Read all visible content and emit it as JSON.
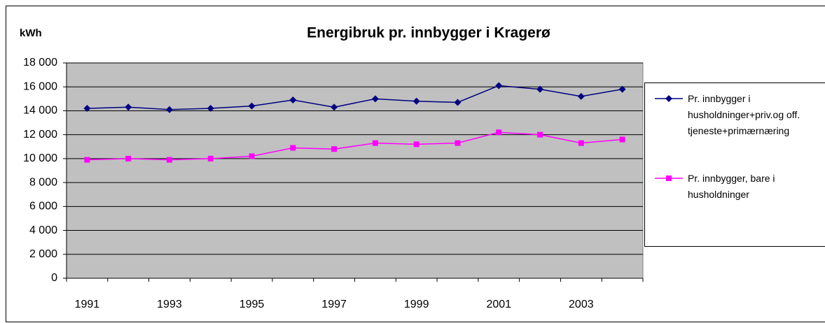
{
  "chart_data": {
    "type": "line",
    "title": "Energibruk pr. innbygger i Kragerø",
    "y_label": "kWh",
    "categories": [
      "1991",
      null,
      "1993",
      null,
      "1995",
      null,
      "1997",
      null,
      "1999",
      null,
      "2001",
      null,
      "2003",
      null
    ],
    "series": [
      {
        "name": "Pr. innbygger i husholdninger+priv.og off. tjeneste+primærnæring",
        "color": "#000080",
        "marker": "diamond",
        "values": [
          14200,
          14300,
          14100,
          14200,
          14400,
          14900,
          14300,
          15000,
          14800,
          14700,
          16100,
          15800,
          15200,
          15800
        ]
      },
      {
        "name": "Pr. innbygger, bare i husholdninger",
        "color": "#ff00ff",
        "marker": "square",
        "values": [
          9900,
          10000,
          9900,
          10000,
          10200,
          10900,
          10800,
          11300,
          11200,
          11300,
          12200,
          12000,
          11300,
          11600
        ]
      }
    ],
    "ylim": [
      0,
      18000
    ],
    "yticks": [
      0,
      {
        "value": 2000,
        "label": "2 000"
      },
      {
        "value": 4000,
        "label": "4 000"
      },
      {
        "value": 6000,
        "label": "6 000"
      },
      {
        "value": 8000,
        "label": "8 000"
      },
      {
        "value": 10000,
        "label": "10 000"
      },
      {
        "value": 12000,
        "label": "12 000"
      },
      {
        "value": 14000,
        "label": "14 000"
      },
      {
        "value": 16000,
        "label": "16 000"
      },
      {
        "value": 18000,
        "label": "18 000"
      }
    ],
    "grid": true,
    "plot_background": "#c0c0c0",
    "legend": "right"
  }
}
